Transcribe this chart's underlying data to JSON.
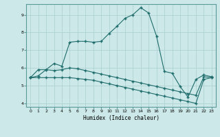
{
  "xlabel": "Humidex (Indice chaleur)",
  "xlim": [
    -0.5,
    23.5
  ],
  "ylim": [
    3.8,
    9.6
  ],
  "yticks": [
    4,
    5,
    6,
    7,
    8,
    9
  ],
  "xticks": [
    0,
    1,
    2,
    3,
    4,
    5,
    6,
    7,
    8,
    9,
    10,
    11,
    12,
    13,
    14,
    15,
    16,
    17,
    18,
    19,
    20,
    21,
    22,
    23
  ],
  "bg_color": "#cce8e8",
  "line_color": "#1e6b6b",
  "grid_color": "#aacece",
  "series": [
    {
      "x": [
        0,
        1,
        2,
        3,
        4,
        5,
        6,
        7,
        8,
        9,
        10,
        11,
        12,
        13,
        14,
        15,
        16,
        17,
        18,
        19,
        20,
        21,
        22,
        23
      ],
      "y": [
        5.45,
        5.9,
        5.9,
        6.25,
        6.1,
        7.45,
        7.5,
        7.5,
        7.45,
        7.5,
        7.95,
        8.35,
        8.8,
        9.0,
        9.4,
        9.1,
        7.8,
        5.8,
        5.7,
        4.95,
        4.35,
        5.35,
        5.6,
        5.5
      ]
    },
    {
      "x": [
        0,
        1,
        2,
        3,
        4,
        5,
        6,
        7,
        8,
        9,
        10,
        11,
        12,
        13,
        14,
        15,
        16,
        17,
        18,
        19,
        20,
        21,
        22,
        23
      ],
      "y": [
        5.45,
        5.55,
        5.9,
        5.85,
        5.9,
        6.0,
        5.95,
        5.85,
        5.75,
        5.65,
        5.55,
        5.45,
        5.35,
        5.25,
        5.15,
        5.05,
        4.95,
        4.85,
        4.75,
        4.65,
        4.55,
        4.45,
        5.5,
        5.45
      ]
    },
    {
      "x": [
        0,
        1,
        2,
        3,
        4,
        5,
        6,
        7,
        8,
        9,
        10,
        11,
        12,
        13,
        14,
        15,
        16,
        17,
        18,
        19,
        20,
        21,
        22,
        23
      ],
      "y": [
        5.45,
        5.45,
        5.45,
        5.45,
        5.45,
        5.45,
        5.4,
        5.35,
        5.3,
        5.2,
        5.1,
        5.0,
        4.9,
        4.8,
        4.7,
        4.6,
        4.5,
        4.4,
        4.3,
        4.2,
        4.1,
        4.0,
        5.35,
        5.45
      ]
    }
  ]
}
